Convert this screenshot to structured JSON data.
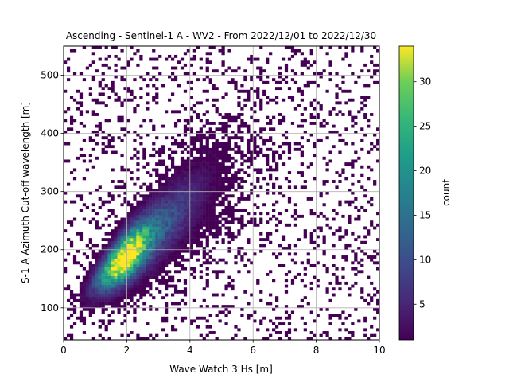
{
  "chart_data": {
    "type": "heatmap",
    "title": "Ascending - Sentinel-1 A - WV2 - From 2022/12/01 to 2022/12/30",
    "xlabel": "Wave Watch 3 Hs [m]",
    "ylabel": "S-1 A Azimuth Cut-off wavelength [m]",
    "xlim": [
      0,
      10
    ],
    "ylim": [
      45,
      550
    ],
    "xticks": [
      0,
      2,
      4,
      6,
      8,
      10
    ],
    "yticks": [
      100,
      200,
      300,
      400,
      500
    ],
    "grid": true,
    "colorbar": {
      "label": "count",
      "range": [
        1,
        34
      ],
      "ticks": [
        5,
        10,
        15,
        20,
        25,
        30
      ],
      "colormap": "viridis"
    },
    "bin_width": {
      "x": 0.1,
      "y": 5
    },
    "distribution_summary": {
      "core_center": {
        "x": 1.9,
        "y": 185
      },
      "peak_count": 34,
      "trend": "positive linear relationship, cut-off wavelength increases with Hs"
    },
    "outlier_points": [
      {
        "x": 0.7,
        "y": 545
      },
      {
        "x": 0.9,
        "y": 545
      },
      {
        "x": 1.2,
        "y": 545
      },
      {
        "x": 1.4,
        "y": 545
      },
      {
        "x": 1.6,
        "y": 545
      },
      {
        "x": 1.2,
        "y": 485
      },
      {
        "x": 1.8,
        "y": 490
      },
      {
        "x": 2.2,
        "y": 490
      },
      {
        "x": 1.6,
        "y": 465
      },
      {
        "x": 1.2,
        "y": 450
      },
      {
        "x": 1.6,
        "y": 455
      },
      {
        "x": 1.3,
        "y": 420
      },
      {
        "x": 1.8,
        "y": 405
      },
      {
        "x": 1.8,
        "y": 385
      },
      {
        "x": 1.1,
        "y": 305
      },
      {
        "x": 1.4,
        "y": 280
      },
      {
        "x": 1.1,
        "y": 270
      },
      {
        "x": 1.8,
        "y": 50
      },
      {
        "x": 1.2,
        "y": 65
      },
      {
        "x": 8.2,
        "y": 545
      },
      {
        "x": 8.9,
        "y": 545
      },
      {
        "x": 9.6,
        "y": 515
      },
      {
        "x": 8.2,
        "y": 500
      },
      {
        "x": 9.2,
        "y": 500
      },
      {
        "x": 8.5,
        "y": 440
      },
      {
        "x": 6.9,
        "y": 490
      },
      {
        "x": 7.4,
        "y": 470
      },
      {
        "x": 8.3,
        "y": 335
      },
      {
        "x": 8.7,
        "y": 330
      },
      {
        "x": 8.9,
        "y": 320
      },
      {
        "x": 8.8,
        "y": 335
      },
      {
        "x": 7.4,
        "y": 330
      },
      {
        "x": 7.7,
        "y": 340
      },
      {
        "x": 6.8,
        "y": 305
      },
      {
        "x": 6.7,
        "y": 280
      }
    ]
  }
}
